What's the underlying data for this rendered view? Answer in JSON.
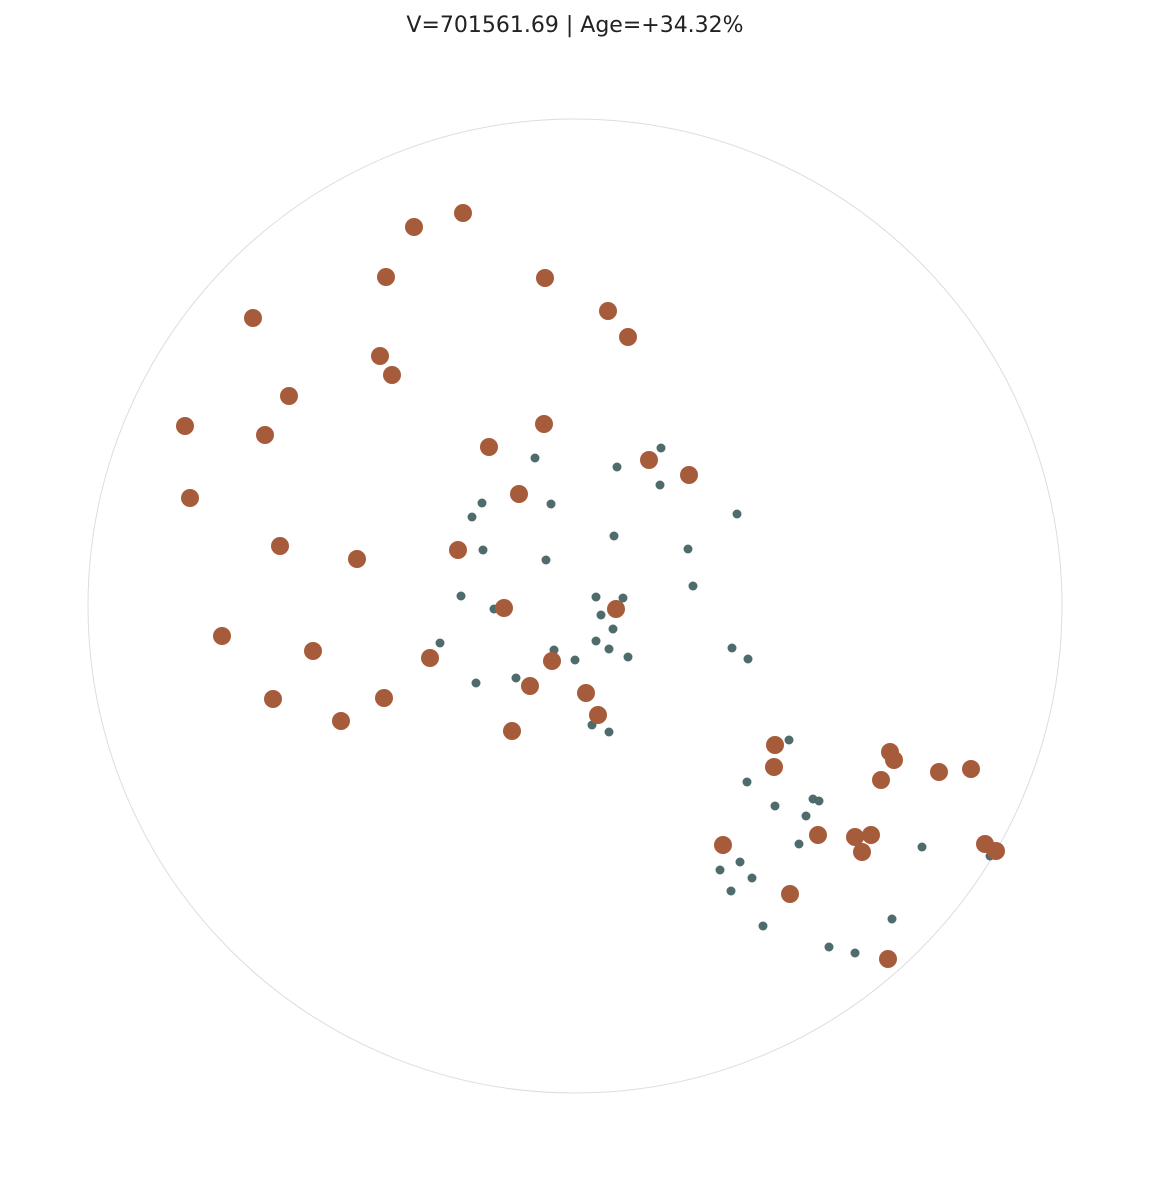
{
  "chart_data": {
    "type": "scatter",
    "title": "V=701561.69 | Age=+34.32%",
    "xlim": [
      -487,
      487
    ],
    "ylim": [
      -487,
      487
    ],
    "frame": "circle",
    "grid": false,
    "series": [
      {
        "color": "#4f6b6b",
        "size": 4.5,
        "x": [
          86,
          -40,
          42,
          85,
          -93,
          -24,
          -103,
          162,
          -55,
          39,
          -92,
          113,
          -29,
          118,
          -114,
          21,
          48,
          -81,
          26,
          38,
          -135,
          21,
          34,
          53,
          -21,
          0,
          157,
          173,
          -99,
          -59,
          -62,
          17,
          34,
          214,
          172,
          238,
          244,
          200,
          231,
          224,
          347,
          165,
          145,
          177,
          156,
          415,
          188,
          317,
          254,
          280
        ],
        "y": [
          158,
          148,
          139,
          121,
          103,
          102,
          89,
          92,
          108,
          70,
          56,
          57,
          46,
          20,
          10,
          9,
          8,
          -3,
          -9,
          -23,
          -37,
          -35,
          -43,
          -51,
          -44,
          -54,
          -42,
          -53,
          -77,
          -72,
          -121,
          -119,
          -126,
          -134,
          -176,
          -193,
          -195,
          -200,
          -210,
          -238,
          -241,
          -256,
          -264,
          -272,
          -285,
          -250,
          -320,
          -313,
          -341,
          -347
        ]
      },
      {
        "color": "#a65b3a",
        "size": 9,
        "x": [
          -112,
          -161,
          -189,
          -30,
          33,
          -322,
          53,
          -195,
          -183,
          -286,
          -390,
          -310,
          -31,
          -86,
          74,
          114,
          -56,
          -385,
          -295,
          -218,
          -117,
          -71,
          41,
          -353,
          -262,
          -145,
          -23,
          -45,
          -302,
          -191,
          11,
          -234,
          23,
          -63,
          200,
          199,
          315,
          319,
          306,
          364,
          396,
          243,
          280,
          296,
          287,
          148,
          410,
          421,
          215,
          313
        ],
        "y": [
          393,
          379,
          329,
          328,
          295,
          288,
          269,
          250,
          231,
          210,
          180,
          171,
          182,
          159,
          146,
          131,
          112,
          108,
          60,
          47,
          56,
          -2,
          -3,
          -30,
          -45,
          -52,
          -55,
          -80,
          -93,
          -92,
          -87,
          -115,
          -109,
          -125,
          -139,
          -161,
          -146,
          -154,
          -174,
          -166,
          -163,
          -229,
          -231,
          -229,
          -246,
          -239,
          -238,
          -245,
          -288,
          -353
        ]
      }
    ]
  }
}
